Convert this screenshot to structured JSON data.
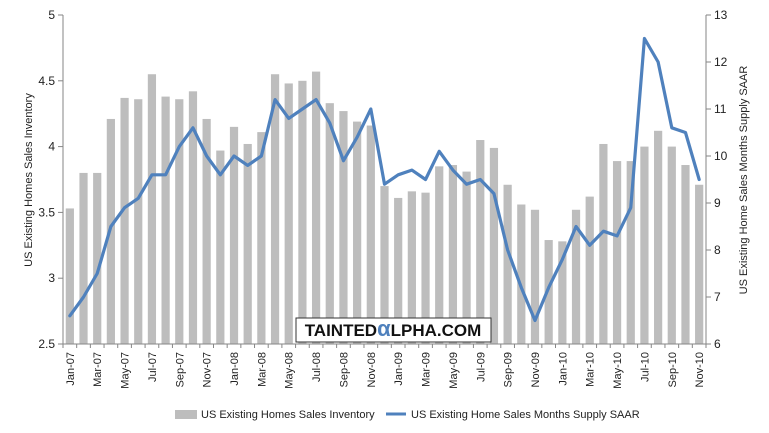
{
  "chart_data": {
    "type": "bar+line",
    "categories": [
      "Jan-07",
      "Feb-07",
      "Mar-07",
      "Apr-07",
      "May-07",
      "Jun-07",
      "Jul-07",
      "Aug-07",
      "Sep-07",
      "Oct-07",
      "Nov-07",
      "Dec-07",
      "Jan-08",
      "Feb-08",
      "Mar-08",
      "Apr-08",
      "May-08",
      "Jun-08",
      "Jul-08",
      "Aug-08",
      "Sep-08",
      "Oct-08",
      "Nov-08",
      "Dec-08",
      "Jan-09",
      "Feb-09",
      "Mar-09",
      "Apr-09",
      "May-09",
      "Jun-09",
      "Jul-09",
      "Aug-09",
      "Sep-09",
      "Oct-09",
      "Nov-09",
      "Dec-09",
      "Jan-10",
      "Feb-10",
      "Mar-10",
      "Apr-10",
      "May-10",
      "Jun-10",
      "Jul-10",
      "Aug-10",
      "Sep-10",
      "Oct-10",
      "Nov-10"
    ],
    "tick_labels": [
      "Jan-07",
      "Mar-07",
      "May-07",
      "Jul-07",
      "Sep-07",
      "Nov-07",
      "Jan-08",
      "Mar-08",
      "May-08",
      "Jul-08",
      "Sep-08",
      "Nov-08",
      "Jan-09",
      "Mar-09",
      "May-09",
      "Jul-09",
      "Sep-09",
      "Nov-09",
      "Jan-10",
      "Mar-10",
      "May-10",
      "Jul-10",
      "Sep-10",
      "Nov-10"
    ],
    "series": [
      {
        "name": "US Existing Homes Sales Inventory",
        "type": "bar",
        "axis": "left",
        "color": "#bdbdbd",
        "values": [
          3.53,
          3.8,
          3.8,
          4.21,
          4.37,
          4.36,
          4.55,
          4.38,
          4.36,
          4.42,
          4.21,
          3.97,
          4.15,
          4.02,
          4.11,
          4.55,
          4.48,
          4.5,
          4.57,
          4.33,
          4.27,
          4.19,
          4.16,
          3.7,
          3.61,
          3.66,
          3.65,
          3.85,
          3.86,
          3.81,
          4.05,
          3.99,
          3.71,
          3.56,
          3.52,
          3.29,
          3.28,
          3.52,
          3.62,
          4.02,
          3.89,
          3.89,
          4.0,
          4.12,
          4.0,
          3.86,
          3.71
        ]
      },
      {
        "name": "US Existing Home Sales Months Supply SAAR",
        "type": "line",
        "axis": "right",
        "color": "#4f81bd",
        "values": [
          6.6,
          7.0,
          7.5,
          8.5,
          8.9,
          9.1,
          9.6,
          9.6,
          10.2,
          10.6,
          10.0,
          9.6,
          10.0,
          9.8,
          10.0,
          11.2,
          10.8,
          11.0,
          11.2,
          10.7,
          9.9,
          10.4,
          11.0,
          9.4,
          9.6,
          9.7,
          9.5,
          10.1,
          9.7,
          9.4,
          9.5,
          9.2,
          8.0,
          7.2,
          6.5,
          7.2,
          7.8,
          8.5,
          8.1,
          8.4,
          8.3,
          8.9,
          12.5,
          12.0,
          10.6,
          10.5,
          9.5
        ]
      }
    ],
    "y_left": {
      "label": "US Existing Homes Sales Inventory",
      "ylim": [
        2.5,
        5
      ],
      "ticks": [
        "2.5",
        "3",
        "3.5",
        "4",
        "4.5",
        "5"
      ]
    },
    "y_right": {
      "label": "US Existing Home Sales Months Supply SAAR",
      "ylim": [
        6,
        13
      ],
      "ticks": [
        "6",
        "7",
        "8",
        "9",
        "10",
        "11",
        "12",
        "13"
      ]
    },
    "grid": false,
    "legend_position": "bottom"
  },
  "watermark": {
    "prefix": "TAINTED",
    "glyph": "α",
    "suffix": "LPHA.COM"
  }
}
